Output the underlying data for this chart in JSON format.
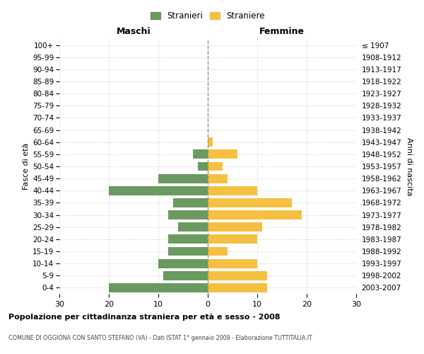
{
  "age_groups": [
    "0-4",
    "5-9",
    "10-14",
    "15-19",
    "20-24",
    "25-29",
    "30-34",
    "35-39",
    "40-44",
    "45-49",
    "50-54",
    "55-59",
    "60-64",
    "65-69",
    "70-74",
    "75-79",
    "80-84",
    "85-89",
    "90-94",
    "95-99",
    "100+"
  ],
  "birth_years": [
    "2003-2007",
    "1998-2002",
    "1993-1997",
    "1988-1992",
    "1983-1987",
    "1978-1982",
    "1973-1977",
    "1968-1972",
    "1963-1967",
    "1958-1962",
    "1953-1957",
    "1948-1952",
    "1943-1947",
    "1938-1942",
    "1933-1937",
    "1928-1932",
    "1923-1927",
    "1918-1922",
    "1913-1917",
    "1908-1912",
    "≤ 1907"
  ],
  "maschi": [
    20,
    9,
    10,
    8,
    8,
    6,
    8,
    7,
    20,
    10,
    2,
    3,
    0,
    0,
    0,
    0,
    0,
    0,
    0,
    0,
    0
  ],
  "femmine": [
    12,
    12,
    10,
    4,
    10,
    11,
    19,
    17,
    10,
    4,
    3,
    6,
    1,
    0,
    0,
    0,
    0,
    0,
    0,
    0,
    0
  ],
  "male_color": "#6a9a5f",
  "female_color": "#f5c042",
  "title": "Popolazione per cittadinanza straniera per età e sesso - 2008",
  "subtitle": "COMUNE DI OGGIONA CON SANTO STEFANO (VA) - Dati ISTAT 1° gennaio 2008 - Elaborazione TUTTITALIA.IT",
  "legend_male": "Stranieri",
  "legend_female": "Straniere",
  "xlabel_left": "Maschi",
  "xlabel_right": "Femmine",
  "ylabel_left": "Fasce di età",
  "ylabel_right": "Anni di nascita",
  "xlim": 30,
  "background_color": "#ffffff",
  "grid_color": "#cccccc"
}
